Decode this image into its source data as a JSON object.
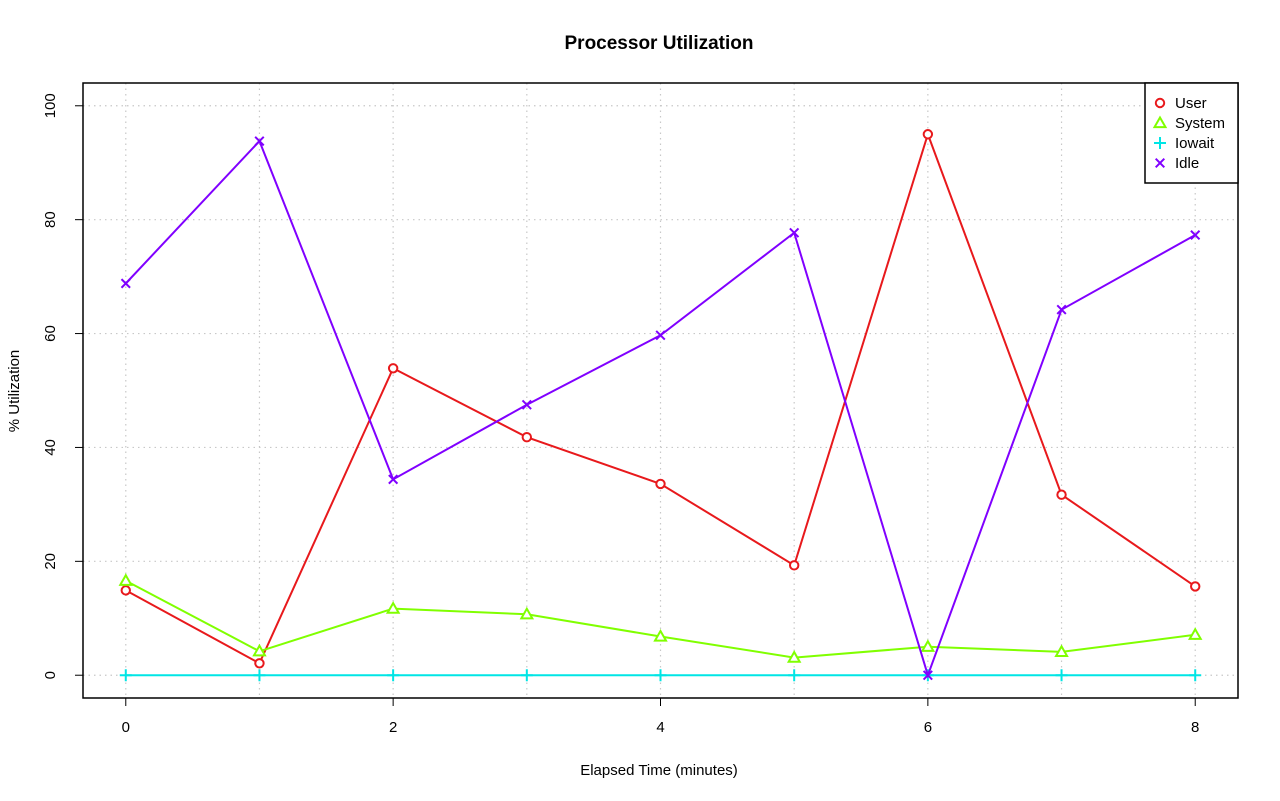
{
  "chart_data": {
    "type": "line",
    "title": "Processor Utilization",
    "xlabel": "Elapsed Time (minutes)",
    "ylabel": "% Utilization",
    "x": [
      0,
      1,
      2,
      3,
      4,
      5,
      6,
      7,
      8
    ],
    "xlim": [
      -0.32,
      8.32
    ],
    "ylim": [
      -4,
      104
    ],
    "xticks": [
      0,
      2,
      4,
      6,
      8
    ],
    "yticks": [
      0,
      20,
      40,
      60,
      80,
      100
    ],
    "xticks_minor_grid": [
      0,
      1,
      2,
      3,
      4,
      5,
      6,
      7,
      8
    ],
    "grid": true,
    "legend_position": "top-right",
    "series": [
      {
        "name": "User",
        "color": "#e8191c",
        "marker": "circle",
        "values": [
          14.9,
          2.1,
          53.9,
          41.8,
          33.6,
          19.3,
          95.0,
          31.7,
          15.6
        ]
      },
      {
        "name": "System",
        "color": "#80ff00",
        "marker": "triangle",
        "values": [
          16.6,
          4.2,
          11.7,
          10.7,
          6.8,
          3.1,
          5.0,
          4.1,
          7.1
        ]
      },
      {
        "name": "Iowait",
        "color": "#00e5e5",
        "marker": "plus",
        "values": [
          0,
          0,
          0,
          0,
          0,
          0,
          0,
          0,
          0
        ]
      },
      {
        "name": "Idle",
        "color": "#8000ff",
        "marker": "cross",
        "values": [
          68.8,
          93.8,
          34.4,
          47.5,
          59.7,
          77.7,
          0.0,
          64.2,
          77.3
        ]
      }
    ]
  }
}
